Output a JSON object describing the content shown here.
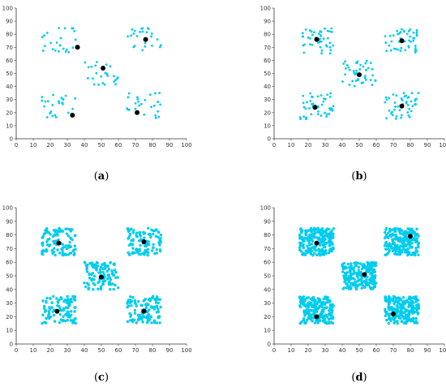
{
  "figure": {
    "point_color": "#00ccee",
    "centroid_color": "#000000",
    "axis_color": "#333333"
  },
  "chart_data": [
    {
      "type": "scatter",
      "caption_letter": "a",
      "xlim": [
        0,
        100
      ],
      "ylim": [
        0,
        100
      ],
      "xticks": [
        "0",
        "10",
        "20",
        "30",
        "40",
        "50",
        "60",
        "70",
        "80",
        "90",
        "100"
      ],
      "yticks": [
        "0",
        "10",
        "20",
        "30",
        "40",
        "50",
        "60",
        "70",
        "80",
        "90",
        "100"
      ],
      "grid": false,
      "clusters": [
        {
          "xrange": [
            15,
            35
          ],
          "yrange": [
            65,
            85
          ],
          "points": 25
        },
        {
          "xrange": [
            65,
            85
          ],
          "yrange": [
            65,
            85
          ],
          "points": 25
        },
        {
          "xrange": [
            40,
            60
          ],
          "yrange": [
            40,
            60
          ],
          "points": 25
        },
        {
          "xrange": [
            15,
            35
          ],
          "yrange": [
            15,
            35
          ],
          "points": 25
        },
        {
          "xrange": [
            65,
            85
          ],
          "yrange": [
            15,
            35
          ],
          "points": 25
        }
      ],
      "centroids": [
        {
          "x": 36,
          "y": 70
        },
        {
          "x": 76,
          "y": 76
        },
        {
          "x": 51,
          "y": 54
        },
        {
          "x": 33,
          "y": 18
        },
        {
          "x": 71,
          "y": 20
        }
      ]
    },
    {
      "type": "scatter",
      "caption_letter": "b",
      "xlim": [
        0,
        100
      ],
      "ylim": [
        0,
        100
      ],
      "xticks": [
        "0",
        "10",
        "20",
        "30",
        "40",
        "50",
        "60",
        "70",
        "80",
        "90",
        "100"
      ],
      "yticks": [
        "0",
        "10",
        "20",
        "30",
        "40",
        "50",
        "60",
        "70",
        "80",
        "90",
        "100"
      ],
      "grid": false,
      "clusters": [
        {
          "xrange": [
            15,
            35
          ],
          "yrange": [
            65,
            85
          ],
          "points": 45
        },
        {
          "xrange": [
            65,
            85
          ],
          "yrange": [
            65,
            85
          ],
          "points": 45
        },
        {
          "xrange": [
            40,
            60
          ],
          "yrange": [
            40,
            60
          ],
          "points": 45
        },
        {
          "xrange": [
            15,
            35
          ],
          "yrange": [
            15,
            35
          ],
          "points": 45
        },
        {
          "xrange": [
            65,
            85
          ],
          "yrange": [
            15,
            35
          ],
          "points": 45
        }
      ],
      "centroids": [
        {
          "x": 25,
          "y": 76
        },
        {
          "x": 75,
          "y": 75
        },
        {
          "x": 50,
          "y": 49
        },
        {
          "x": 24,
          "y": 24
        },
        {
          "x": 75,
          "y": 25
        }
      ]
    },
    {
      "type": "scatter",
      "caption_letter": "c",
      "xlim": [
        0,
        100
      ],
      "ylim": [
        0,
        100
      ],
      "xticks": [
        "0",
        "10",
        "20",
        "30",
        "40",
        "50",
        "60",
        "70",
        "80",
        "90",
        "100"
      ],
      "yticks": [
        "0",
        "10",
        "20",
        "30",
        "40",
        "50",
        "60",
        "70",
        "80",
        "90",
        "100"
      ],
      "grid": false,
      "clusters": [
        {
          "xrange": [
            15,
            35
          ],
          "yrange": [
            65,
            85
          ],
          "points": 110
        },
        {
          "xrange": [
            65,
            85
          ],
          "yrange": [
            65,
            85
          ],
          "points": 110
        },
        {
          "xrange": [
            40,
            60
          ],
          "yrange": [
            40,
            60
          ],
          "points": 110
        },
        {
          "xrange": [
            15,
            35
          ],
          "yrange": [
            15,
            35
          ],
          "points": 110
        },
        {
          "xrange": [
            65,
            85
          ],
          "yrange": [
            15,
            35
          ],
          "points": 110
        }
      ],
      "centroids": [
        {
          "x": 25,
          "y": 74
        },
        {
          "x": 75,
          "y": 75
        },
        {
          "x": 50,
          "y": 49
        },
        {
          "x": 24,
          "y": 24
        },
        {
          "x": 75,
          "y": 24
        }
      ]
    },
    {
      "type": "scatter",
      "caption_letter": "d",
      "xlim": [
        0,
        100
      ],
      "ylim": [
        0,
        100
      ],
      "xticks": [
        "0",
        "10",
        "20",
        "30",
        "40",
        "50",
        "60",
        "70",
        "80",
        "90",
        "100"
      ],
      "yticks": [
        "0",
        "10",
        "20",
        "30",
        "40",
        "50",
        "60",
        "70",
        "80",
        "90",
        "100"
      ],
      "grid": false,
      "clusters": [
        {
          "xrange": [
            15,
            35
          ],
          "yrange": [
            65,
            85
          ],
          "points": 220
        },
        {
          "xrange": [
            65,
            85
          ],
          "yrange": [
            65,
            85
          ],
          "points": 220
        },
        {
          "xrange": [
            40,
            60
          ],
          "yrange": [
            40,
            60
          ],
          "points": 220
        },
        {
          "xrange": [
            15,
            35
          ],
          "yrange": [
            15,
            35
          ],
          "points": 220
        },
        {
          "xrange": [
            65,
            85
          ],
          "yrange": [
            15,
            35
          ],
          "points": 220
        }
      ],
      "centroids": [
        {
          "x": 25,
          "y": 74
        },
        {
          "x": 80,
          "y": 79
        },
        {
          "x": 53,
          "y": 51
        },
        {
          "x": 25,
          "y": 20
        },
        {
          "x": 70,
          "y": 22
        }
      ]
    }
  ]
}
